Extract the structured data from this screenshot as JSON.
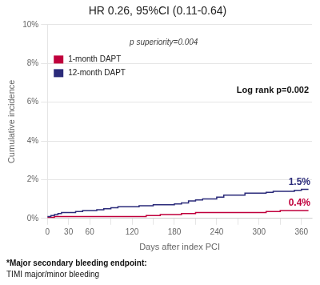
{
  "chart_data": {
    "type": "line",
    "title": "HR 0.26, 95%CI (0.11-0.64)",
    "x_label": "Days after index PCI",
    "y_label": "Cumulative incidence",
    "annotations": [
      "p superiority=0.004",
      "Log rank p=0.002"
    ],
    "footnotes": [
      "*Major secondary bleeding endpoint:",
      "TIMI major/minor bleeding"
    ],
    "xlim": [
      0,
      375
    ],
    "ylim": [
      0,
      0.1
    ],
    "xticks": [
      0,
      30,
      60,
      {
        "value": 90,
        "label": null
      },
      120,
      {
        "value": 150,
        "label": null
      },
      180,
      {
        "value": 210,
        "label": null
      },
      240,
      {
        "value": 270,
        "label": null
      },
      300,
      {
        "value": 330,
        "label": null
      },
      360
    ],
    "yticks": [
      {
        "value": 0,
        "label": "0%"
      },
      {
        "value": 0.02,
        "label": "2%"
      },
      {
        "value": 0.04,
        "label": "4%"
      },
      {
        "value": 0.06,
        "label": "6%"
      },
      {
        "value": 0.08,
        "label": "8%"
      },
      {
        "value": 0.1,
        "label": "10%"
      }
    ],
    "grid": true,
    "legend": "upper left",
    "line_style": "steps",
    "series": [
      {
        "name": "12-month DAPT",
        "color": "#2b2b7a",
        "end_label": "1.5%",
        "x": [
          0,
          5,
          10,
          15,
          20,
          25,
          30,
          40,
          50,
          60,
          70,
          80,
          90,
          100,
          110,
          120,
          130,
          140,
          150,
          160,
          170,
          180,
          190,
          200,
          210,
          220,
          230,
          240,
          250,
          260,
          270,
          280,
          290,
          300,
          310,
          320,
          330,
          340,
          350,
          360,
          370
        ],
        "values": [
          0.001,
          0.0015,
          0.002,
          0.0025,
          0.003,
          0.003,
          0.003,
          0.0035,
          0.004,
          0.004,
          0.0045,
          0.005,
          0.0055,
          0.006,
          0.006,
          0.006,
          0.0065,
          0.0065,
          0.007,
          0.007,
          0.007,
          0.0075,
          0.008,
          0.009,
          0.0095,
          0.01,
          0.01,
          0.011,
          0.012,
          0.012,
          0.012,
          0.013,
          0.013,
          0.013,
          0.0135,
          0.014,
          0.014,
          0.014,
          0.0145,
          0.015,
          0.015
        ]
      },
      {
        "name": "1-month DAPT",
        "color": "#c0003c",
        "end_label": "0.4%",
        "x": [
          0,
          5,
          10,
          20,
          30,
          40,
          50,
          60,
          70,
          80,
          90,
          100,
          110,
          120,
          130,
          140,
          150,
          160,
          170,
          180,
          190,
          200,
          210,
          220,
          230,
          240,
          250,
          260,
          270,
          280,
          290,
          300,
          310,
          320,
          330,
          340,
          350,
          360,
          370
        ],
        "values": [
          0.0005,
          0.0005,
          0.001,
          0.001,
          0.001,
          0.001,
          0.001,
          0.001,
          0.001,
          0.001,
          0.001,
          0.001,
          0.001,
          0.001,
          0.001,
          0.0015,
          0.0015,
          0.002,
          0.002,
          0.002,
          0.0025,
          0.0025,
          0.003,
          0.003,
          0.003,
          0.003,
          0.003,
          0.003,
          0.003,
          0.003,
          0.003,
          0.003,
          0.0035,
          0.0035,
          0.004,
          0.004,
          0.004,
          0.004,
          0.004
        ]
      }
    ]
  }
}
